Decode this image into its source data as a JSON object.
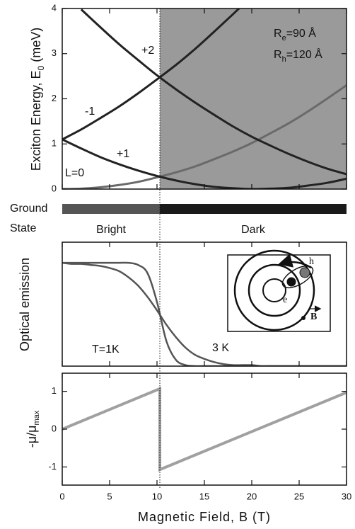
{
  "chart_data": [
    {
      "type": "line",
      "ylabel": [
        "Exciton Energy, E",
        "0",
        " (meV)"
      ],
      "x": [
        0,
        2,
        4,
        6,
        8,
        10,
        12,
        14,
        16,
        18,
        20,
        22,
        24,
        26,
        28,
        30
      ],
      "series": [
        {
          "name": "L=0",
          "color": "#6a6a6a",
          "values": [
            0,
            0.01,
            0.04,
            0.09,
            0.16,
            0.26,
            0.37,
            0.5,
            0.66,
            0.83,
            1.02,
            1.24,
            1.47,
            1.73,
            2.01,
            2.3
          ]
        },
        {
          "name": "+1",
          "color": "#222222",
          "values": [
            1.1,
            0.9,
            0.71,
            0.55,
            0.41,
            0.29,
            0.19,
            0.11,
            0.05,
            0.02,
            0,
            0.01,
            0.03,
            0.08,
            0.14,
            0.23
          ]
        },
        {
          "name": "-1",
          "color": "#222222",
          "values": [
            1.1,
            1.32,
            1.57,
            1.83,
            2.12,
            2.43,
            2.75,
            3.1,
            3.48,
            3.87,
            4.27,
            null,
            null,
            null,
            null,
            null
          ]
        },
        {
          "name": "+2",
          "color": "#222222",
          "values": [
            null,
            3.98,
            3.59,
            3.21,
            2.86,
            2.52,
            2.21,
            1.92,
            1.65,
            1.39,
            1.16,
            0.96,
            0.77,
            0.6,
            0.45,
            0.33
          ]
        }
      ],
      "xlim": [
        0,
        30
      ],
      "ylim": [
        0,
        4
      ],
      "xticks": [
        0,
        5,
        10,
        15,
        20,
        25,
        30
      ],
      "yticks": [
        0,
        1,
        2,
        3,
        4
      ],
      "shaded_region": [
        10.3,
        30
      ],
      "shade_color": "#9a9a9a",
      "annotations": [
        [
          "R",
          "e",
          "=90 Å"
        ],
        [
          "R",
          "h",
          "=120 Å"
        ]
      ]
    },
    {
      "type": "line",
      "ylabel": "Optical emission",
      "x": [
        0,
        1,
        2,
        3,
        4,
        5,
        6,
        7,
        8,
        9,
        10,
        11,
        12,
        13,
        14,
        15,
        16,
        17,
        18,
        19,
        20,
        21,
        22,
        23,
        24,
        25,
        26,
        27,
        28,
        29,
        30
      ],
      "series": [
        {
          "name": "T=1K",
          "color": "#555555",
          "values": [
            1,
            1,
            1,
            1,
            1,
            1,
            1,
            1,
            0.98,
            0.9,
            0.62,
            0.24,
            0.06,
            0.01,
            0,
            0,
            0,
            0,
            0,
            0,
            0,
            0,
            0,
            0,
            0,
            0,
            0,
            0,
            0,
            0,
            0
          ]
        },
        {
          "name": "3 K",
          "color": "#555555",
          "values": [
            1,
            0.99,
            0.99,
            0.98,
            0.97,
            0.95,
            0.92,
            0.86,
            0.78,
            0.67,
            0.54,
            0.4,
            0.28,
            0.18,
            0.11,
            0.07,
            0.04,
            0.02,
            0.01,
            0.01,
            0.01,
            0,
            0,
            0,
            0,
            0,
            0,
            0,
            0,
            0,
            0
          ]
        }
      ],
      "xlim": [
        0,
        30
      ],
      "ylim": [
        0,
        1.2
      ],
      "xticks": [
        0,
        5,
        10,
        15,
        20,
        25,
        30
      ],
      "inset_labels": [
        "e",
        "h",
        "B"
      ]
    },
    {
      "type": "line",
      "ylabel": [
        "-μ/μ",
        "max"
      ],
      "xlabel": "Magnetic Field, B (T)",
      "x": [
        0,
        10.3,
        10.3,
        30
      ],
      "series": [
        {
          "color": "#a0a0a0",
          "values": [
            0,
            1.07,
            -1.07,
            0.97
          ]
        }
      ],
      "xlim": [
        0,
        30
      ],
      "ylim": [
        -1.48,
        1.48
      ],
      "xticks": [
        0,
        5,
        10,
        15,
        20,
        25,
        30
      ],
      "yticks": [
        -1,
        0,
        1
      ]
    }
  ],
  "ground_state": {
    "label": [
      "Ground",
      "State"
    ],
    "segments": [
      {
        "name": "Bright",
        "xlim": [
          0,
          10.3
        ],
        "color": "#555555"
      },
      {
        "name": "Dark",
        "xlim": [
          10.3,
          30
        ],
        "color": "#1a1a1a"
      }
    ]
  }
}
